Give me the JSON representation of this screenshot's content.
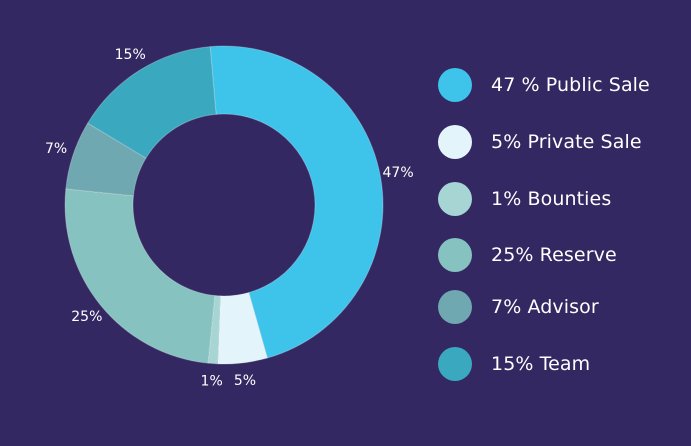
{
  "chart_data": {
    "type": "pie",
    "donut": true,
    "categories": [
      "Public Sale",
      "Private Sale",
      "Bounties",
      "Reserve",
      "Advisor",
      "Team"
    ],
    "values": [
      47,
      5,
      1,
      25,
      7,
      15
    ],
    "slice_labels": [
      "47%",
      "5%",
      "1%",
      "25%",
      "7%",
      "15%"
    ],
    "colors": [
      "#3EC3EB",
      "#E4F4FB",
      "#A6D5D4",
      "#85C2C0",
      "#6FA8B1",
      "#3AA9BF"
    ],
    "legend_placement": "right",
    "legend_labels": [
      "47 % Public Sale",
      "5% Private Sale",
      "1% Bounties",
      "25% Reserve",
      "7% Advisor",
      "15% Team"
    ]
  }
}
